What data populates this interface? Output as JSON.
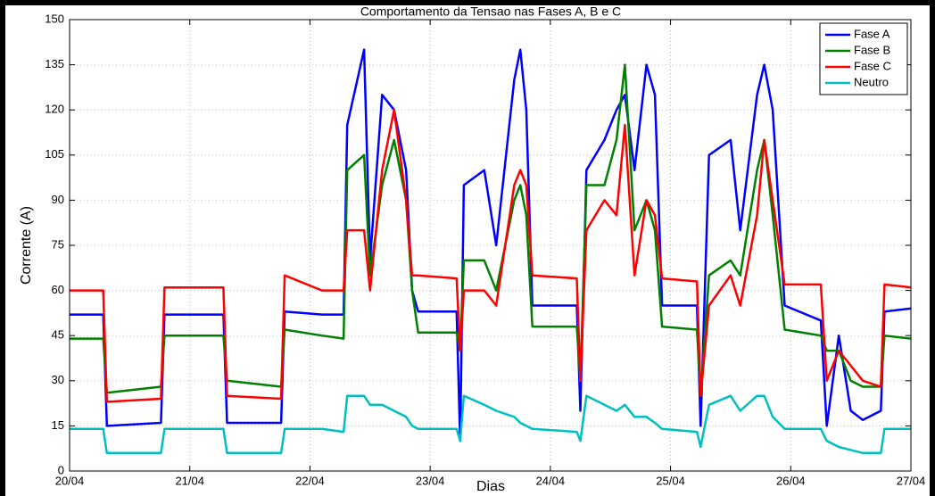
{
  "chart_data": {
    "type": "line",
    "title": "Comportamento da Tensao nas Fases A, B e C",
    "x_label": "Dias",
    "y_label": "Corrente (A)",
    "x": [
      0,
      0.28,
      0.31,
      0.76,
      0.79,
      1.28,
      1.31,
      1.76,
      1.79,
      2.1,
      2.28,
      2.31,
      2.45,
      2.5,
      2.6,
      2.7,
      2.8,
      2.85,
      2.9,
      3.22,
      3.25,
      3.28,
      3.45,
      3.55,
      3.7,
      3.75,
      3.8,
      3.85,
      4.22,
      4.25,
      4.3,
      4.45,
      4.55,
      4.62,
      4.7,
      4.8,
      4.87,
      4.93,
      5.22,
      5.25,
      5.32,
      5.5,
      5.58,
      5.72,
      5.78,
      5.85,
      5.95,
      6.25,
      6.3,
      6.4,
      6.5,
      6.6,
      6.75,
      6.78,
      7
    ],
    "series": [
      {
        "name": "Fase A",
        "color": "#0000ff",
        "values": [
          52,
          52,
          15,
          16,
          52,
          52,
          16,
          16,
          53,
          52,
          52,
          115,
          140,
          70,
          125,
          120,
          100,
          60,
          53,
          53,
          10,
          95,
          100,
          75,
          130,
          140,
          120,
          55,
          55,
          20,
          100,
          110,
          120,
          125,
          100,
          135,
          125,
          55,
          55,
          15,
          105,
          110,
          80,
          125,
          135,
          120,
          55,
          50,
          15,
          45,
          20,
          17,
          20,
          53,
          54
        ]
      },
      {
        "name": "Fase B",
        "color": "#008000",
        "values": [
          44,
          44,
          26,
          28,
          45,
          45,
          30,
          28,
          47,
          45,
          44,
          100,
          105,
          65,
          95,
          110,
          90,
          60,
          46,
          46,
          40,
          70,
          70,
          60,
          90,
          95,
          85,
          48,
          48,
          30,
          95,
          95,
          110,
          135,
          80,
          90,
          80,
          48,
          47,
          25,
          65,
          70,
          65,
          100,
          110,
          85,
          47,
          45,
          40,
          40,
          30,
          28,
          28,
          45,
          44
        ]
      },
      {
        "name": "Fase C",
        "color": "#ff0000",
        "values": [
          60,
          60,
          23,
          24,
          61,
          61,
          25,
          24,
          65,
          60,
          60,
          80,
          80,
          60,
          100,
          120,
          90,
          65,
          65,
          64,
          40,
          60,
          60,
          55,
          95,
          100,
          95,
          65,
          64,
          30,
          80,
          90,
          85,
          115,
          65,
          90,
          85,
          64,
          63,
          25,
          55,
          65,
          55,
          85,
          110,
          90,
          62,
          62,
          30,
          40,
          35,
          30,
          28,
          62,
          61
        ]
      },
      {
        "name": "Neutro",
        "color": "#00bfbf",
        "values": [
          14,
          14,
          6,
          6,
          14,
          14,
          6,
          6,
          14,
          14,
          13,
          25,
          25,
          22,
          22,
          20,
          18,
          15,
          14,
          14,
          10,
          25,
          22,
          20,
          18,
          16,
          15,
          14,
          13,
          10,
          25,
          22,
          20,
          22,
          18,
          18,
          16,
          14,
          13,
          8,
          22,
          25,
          20,
          25,
          25,
          18,
          14,
          14,
          10,
          8,
          7,
          6,
          6,
          14,
          14
        ]
      }
    ],
    "xlim": [
      0,
      7
    ],
    "xticks": [
      {
        "value": 0,
        "label": "20/04"
      },
      {
        "value": 1,
        "label": "21/04"
      },
      {
        "value": 2,
        "label": "22/04"
      },
      {
        "value": 3,
        "label": "23/04"
      },
      {
        "value": 4,
        "label": "24/04"
      },
      {
        "value": 5,
        "label": "25/04"
      },
      {
        "value": 6,
        "label": "26/04"
      },
      {
        "value": 7,
        "label": "27/04"
      }
    ],
    "ylim": [
      0,
      150
    ],
    "yticks": [
      0,
      15,
      30,
      45,
      60,
      75,
      90,
      105,
      120,
      135,
      150
    ],
    "grid": true,
    "legend": "upper right"
  }
}
